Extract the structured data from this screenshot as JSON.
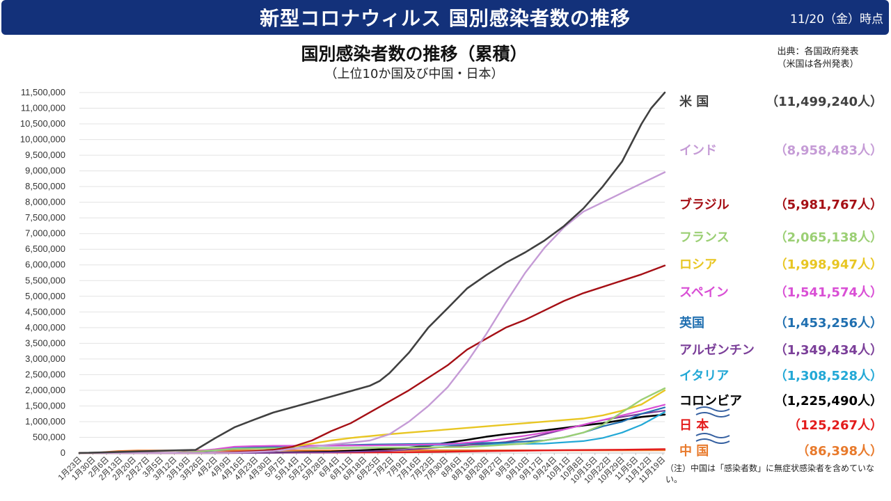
{
  "header": {
    "title": "新型コロナウィルス 国別感染者数の推移",
    "date": "11/20（金）時点"
  },
  "source": {
    "line1": "出典：各国政府発表",
    "line2": "（米国は各州発表）"
  },
  "note": "（注）中国は「感染者数」に無症状感染者を含めていない。",
  "chart_data": {
    "type": "line",
    "title": "国別感染者数の推移（累積）",
    "subtitle": "（上位10か国及び中国・日本）",
    "xlabel": "",
    "ylabel": "",
    "ylim": [
      0,
      11500000
    ],
    "yticks": [
      0,
      500000,
      1000000,
      1500000,
      2000000,
      2500000,
      3000000,
      3500000,
      4000000,
      4500000,
      5000000,
      5500000,
      6000000,
      6500000,
      7000000,
      7500000,
      8000000,
      8500000,
      9000000,
      9500000,
      10000000,
      10500000,
      11000000,
      11500000
    ],
    "ytick_labels": [
      "0",
      "500,000",
      "1,000,000",
      "1,500,000",
      "2,000,000",
      "2,500,000",
      "3,000,000",
      "3,500,000",
      "4,000,000",
      "4,500,000",
      "5,000,000",
      "5,500,000",
      "6,000,000",
      "6,500,000",
      "7,000,000",
      "7,500,000",
      "8,000,000",
      "8,500,000",
      "9,000,000",
      "9,500,000",
      "10,000,000",
      "10,500,000",
      "11,000,000",
      "11,500,000"
    ],
    "grid": true,
    "x_domain": [
      0,
      302
    ],
    "xticks": [
      0,
      7,
      14,
      21,
      28,
      35,
      42,
      49,
      56,
      63,
      70,
      77,
      84,
      91,
      98,
      105,
      112,
      119,
      126,
      133,
      140,
      147,
      154,
      161,
      168,
      175,
      182,
      189,
      196,
      203,
      210,
      217,
      224,
      231,
      238,
      245,
      252,
      259,
      266,
      273,
      280,
      287,
      294,
      301
    ],
    "xtick_labels": [
      "1月23日",
      "1月30日",
      "2月6日",
      "2月13日",
      "2月20日",
      "2月27日",
      "3月5日",
      "3月12日",
      "3月19日",
      "3月26日",
      "4月2日",
      "4月9日",
      "4月16日",
      "4月23日",
      "4月30日",
      "5月7日",
      "5月14日",
      "5月21日",
      "5月28日",
      "6月4日",
      "6月11日",
      "6月18日",
      "6月25日",
      "7月2日",
      "7月9日",
      "7月16日",
      "7月23日",
      "7月30日",
      "8月6日",
      "8月13日",
      "8月20日",
      "8月27日",
      "9月3日",
      "9月10日",
      "9月17日",
      "9月24日",
      "10月1日",
      "10月8日",
      "10月15日",
      "10月22日",
      "10月29日",
      "11月5日",
      "11月12日",
      "11月19日"
    ],
    "series": [
      {
        "name": "米 国",
        "label": "（11,499,240人）",
        "color": "#404040",
        "width": 2.6,
        "x": [
          0,
          60,
          70,
          80,
          90,
          100,
          110,
          130,
          150,
          155,
          160,
          170,
          180,
          190,
          200,
          210,
          220,
          230,
          240,
          250,
          260,
          270,
          280,
          290,
          295,
          302
        ],
        "values": [
          0,
          100000,
          470000,
          820000,
          1060000,
          1290000,
          1460000,
          1800000,
          2150000,
          2300000,
          2550000,
          3200000,
          4000000,
          4620000,
          5250000,
          5680000,
          6070000,
          6400000,
          6780000,
          7240000,
          7800000,
          8500000,
          9300000,
          10500000,
          11000000,
          11499240
        ]
      },
      {
        "name": "インド",
        "label": "（8,958,483人）",
        "color": "#c59bd6",
        "width": 2.4,
        "x": [
          0,
          60,
          70,
          80,
          90,
          100,
          110,
          120,
          130,
          140,
          150,
          160,
          170,
          180,
          190,
          200,
          210,
          220,
          230,
          240,
          250,
          260,
          270,
          280,
          290,
          302
        ],
        "values": [
          0,
          0,
          4000,
          13000,
          30000,
          60000,
          130000,
          200000,
          270000,
          330000,
          400000,
          600000,
          1000000,
          1500000,
          2100000,
          2900000,
          3800000,
          4800000,
          5750000,
          6550000,
          7200000,
          7700000,
          8000000,
          8300000,
          8600000,
          8958483
        ]
      },
      {
        "name": "ブラジル",
        "label": "（5,981,767人）",
        "color": "#a50f15",
        "width": 2.4,
        "x": [
          0,
          60,
          70,
          80,
          90,
          100,
          110,
          120,
          130,
          140,
          150,
          160,
          170,
          180,
          190,
          200,
          210,
          220,
          230,
          240,
          250,
          260,
          270,
          280,
          290,
          302
        ],
        "values": [
          0,
          0,
          10000,
          30000,
          60000,
          100000,
          200000,
          400000,
          700000,
          950000,
          1300000,
          1650000,
          2000000,
          2400000,
          2800000,
          3300000,
          3650000,
          4000000,
          4250000,
          4550000,
          4850000,
          5100000,
          5300000,
          5500000,
          5700000,
          5981767
        ]
      },
      {
        "name": "フランス",
        "label": "（2,065,138人）",
        "color": "#9bcf74",
        "width": 2.4,
        "x": [
          0,
          40,
          50,
          60,
          70,
          80,
          100,
          150,
          200,
          230,
          250,
          260,
          270,
          280,
          290,
          302
        ],
        "values": [
          0,
          100,
          5000,
          40000,
          90000,
          130000,
          150000,
          165000,
          190000,
          300000,
          500000,
          650000,
          900000,
          1300000,
          1700000,
          2065138
        ]
      },
      {
        "name": "ロシア",
        "label": "（1,998,947人）",
        "color": "#e8c623",
        "width": 2.4,
        "x": [
          0,
          60,
          70,
          80,
          90,
          100,
          110,
          120,
          130,
          140,
          150,
          160,
          170,
          190,
          210,
          230,
          250,
          260,
          270,
          280,
          290,
          302
        ],
        "values": [
          0,
          1000,
          5000,
          20000,
          60000,
          110000,
          200000,
          300000,
          400000,
          480000,
          540000,
          600000,
          650000,
          750000,
          850000,
          950000,
          1050000,
          1100000,
          1200000,
          1350000,
          1550000,
          1998947
        ]
      },
      {
        "name": "スペイン",
        "label": "（1,541,574人）",
        "color": "#d94fd5",
        "width": 2.2,
        "x": [
          0,
          40,
          50,
          60,
          70,
          80,
          90,
          100,
          150,
          190,
          210,
          230,
          250,
          270,
          290,
          302
        ],
        "values": [
          0,
          100,
          5000,
          60000,
          120000,
          200000,
          220000,
          230000,
          240000,
          280000,
          380000,
          550000,
          750000,
          1050000,
          1350000,
          1541574
        ]
      },
      {
        "name": "英国",
        "label": "（1,453,256人）",
        "color": "#1f6fb0",
        "width": 2.2,
        "x": [
          0,
          40,
          50,
          60,
          70,
          80,
          90,
          100,
          150,
          200,
          220,
          240,
          250,
          260,
          270,
          280,
          290,
          302
        ],
        "values": [
          0,
          100,
          2000,
          30000,
          80000,
          130000,
          170000,
          200000,
          270000,
          310000,
          330000,
          400000,
          500000,
          650000,
          850000,
          1000000,
          1250000,
          1453256
        ]
      },
      {
        "name": "アルゼンチン",
        "label": "（1,349,434人）",
        "color": "#7b3f99",
        "width": 2.2,
        "x": [
          0,
          60,
          80,
          100,
          130,
          160,
          180,
          200,
          210,
          220,
          230,
          240,
          250,
          260,
          270,
          280,
          290,
          302
        ],
        "values": [
          0,
          100,
          3000,
          6000,
          20000,
          70000,
          150000,
          250000,
          300000,
          350000,
          450000,
          600000,
          750000,
          900000,
          1050000,
          1150000,
          1250000,
          1349434
        ]
      },
      {
        "name": "イタリア",
        "label": "（1,308,528人）",
        "color": "#22a8d6",
        "width": 2.2,
        "x": [
          0,
          30,
          40,
          50,
          60,
          70,
          80,
          90,
          100,
          150,
          200,
          240,
          260,
          270,
          280,
          290,
          302
        ],
        "values": [
          0,
          10,
          300,
          10000,
          60000,
          110000,
          160000,
          200000,
          220000,
          240000,
          260000,
          300000,
          380000,
          480000,
          650000,
          900000,
          1308528
        ]
      },
      {
        "name": "コロンビア",
        "label": "（1,225,490人）",
        "color": "#000000",
        "width": 2.6,
        "x": [
          0,
          60,
          100,
          130,
          150,
          170,
          180,
          190,
          200,
          210,
          220,
          230,
          240,
          250,
          260,
          270,
          280,
          290,
          302
        ],
        "values": [
          0,
          100,
          10000,
          40000,
          100000,
          170000,
          230000,
          330000,
          420000,
          520000,
          600000,
          660000,
          720000,
          800000,
          880000,
          950000,
          1050000,
          1150000,
          1225490
        ]
      },
      {
        "name": "日 本",
        "label": "（125,267人）",
        "color": "#e31b1b",
        "width": 2.4,
        "x": [
          0,
          80,
          100,
          150,
          170,
          190,
          210,
          250,
          280,
          302
        ],
        "values": [
          0,
          3000,
          12000,
          18000,
          25000,
          40000,
          60000,
          90000,
          105000,
          125267
        ]
      },
      {
        "name": "中 国",
        "label": "（86,398人）",
        "color": "#e87a2c",
        "width": 2.4,
        "x": [
          0,
          10,
          20,
          30,
          40,
          302
        ],
        "values": [
          500,
          12000,
          60000,
          78000,
          80000,
          86398
        ]
      }
    ]
  }
}
